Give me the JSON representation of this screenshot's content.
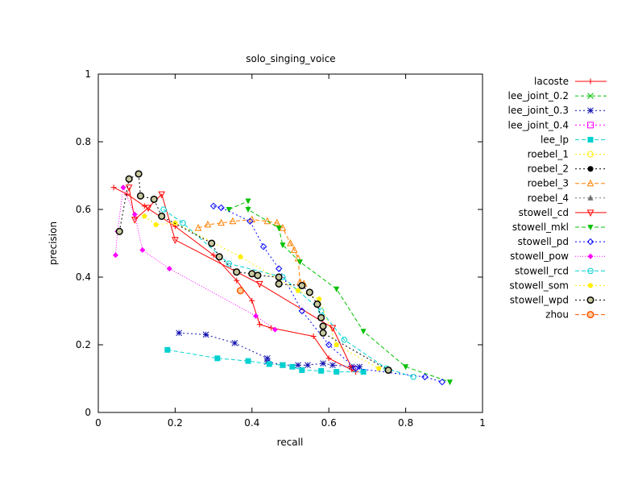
{
  "chart_data": {
    "type": "line",
    "title": "solo_singing_voice",
    "xlabel": "recall",
    "ylabel": "precision",
    "xlim": [
      0,
      1
    ],
    "ylim": [
      0,
      1
    ],
    "xticks": [
      "0",
      "0.2",
      "0.4",
      "0.6",
      "0.8",
      "1"
    ],
    "yticks": [
      "0",
      "0.2",
      "0.4",
      "0.6",
      "0.8",
      "1"
    ],
    "grid": false,
    "legend_position": "right",
    "series": [
      {
        "name": "lacoste",
        "color": "#ff0000",
        "marker": "plus",
        "dash": "",
        "points": [
          [
            0.04,
            0.665
          ],
          [
            0.075,
            0.645
          ],
          [
            0.12,
            0.61
          ],
          [
            0.2,
            0.55
          ],
          [
            0.3,
            0.465
          ],
          [
            0.36,
            0.39
          ],
          [
            0.4,
            0.33
          ],
          [
            0.42,
            0.26
          ],
          [
            0.45,
            0.25
          ],
          [
            0.56,
            0.225
          ],
          [
            0.6,
            0.16
          ],
          [
            0.67,
            0.12
          ]
        ]
      },
      {
        "name": "lee_joint_0.2",
        "color": "#00c000",
        "marker": "x",
        "dash": "4,3",
        "points": []
      },
      {
        "name": "lee_joint_0.3",
        "color": "#1010b0",
        "marker": "star",
        "dash": "2,3",
        "points": [
          [
            0.21,
            0.235
          ],
          [
            0.28,
            0.23
          ],
          [
            0.355,
            0.205
          ],
          [
            0.44,
            0.16
          ],
          [
            0.44,
            0.15
          ],
          [
            0.48,
            0.14
          ],
          [
            0.52,
            0.14
          ],
          [
            0.545,
            0.14
          ],
          [
            0.585,
            0.145
          ],
          [
            0.61,
            0.14
          ],
          [
            0.66,
            0.135
          ],
          [
            0.68,
            0.135
          ]
        ]
      },
      {
        "name": "lee_joint_0.4",
        "color": "#ff00ff",
        "marker": "box",
        "dash": "2,3",
        "points": []
      },
      {
        "name": "lee_lp",
        "color": "#00d0d0",
        "marker": "fbox",
        "dash": "5,3",
        "points": [
          [
            0.18,
            0.185
          ],
          [
            0.31,
            0.16
          ],
          [
            0.39,
            0.152
          ],
          [
            0.445,
            0.143
          ],
          [
            0.48,
            0.14
          ],
          [
            0.505,
            0.135
          ],
          [
            0.53,
            0.125
          ],
          [
            0.58,
            0.123
          ],
          [
            0.62,
            0.12
          ],
          [
            0.69,
            0.12
          ]
        ]
      },
      {
        "name": "roebel_1",
        "color": "#ffee00",
        "marker": "circle",
        "dash": "2,3",
        "points": []
      },
      {
        "name": "roebel_2",
        "color": "#000000",
        "marker": "fcircle",
        "dash": "2,3",
        "points": []
      },
      {
        "name": "roebel_3",
        "color": "#ff8000",
        "marker": "triangle",
        "dash": "5,3",
        "points": [
          [
            0.26,
            0.545
          ],
          [
            0.285,
            0.555
          ],
          [
            0.32,
            0.56
          ],
          [
            0.35,
            0.565
          ],
          [
            0.4,
            0.57
          ],
          [
            0.44,
            0.565
          ],
          [
            0.465,
            0.56
          ],
          [
            0.48,
            0.545
          ],
          [
            0.5,
            0.5
          ],
          [
            0.51,
            0.48
          ],
          [
            0.52,
            0.455
          ],
          [
            0.525,
            0.385
          ],
          [
            0.535,
            0.38
          ]
        ]
      },
      {
        "name": "roebel_4",
        "color": "#707070",
        "marker": "ftriangle",
        "dash": "2,3",
        "points": []
      },
      {
        "name": "stowell_cd",
        "color": "#ff0000",
        "marker": "itriangle",
        "dash": "",
        "points": [
          [
            0.08,
            0.665
          ],
          [
            0.095,
            0.57
          ],
          [
            0.13,
            0.605
          ],
          [
            0.165,
            0.645
          ],
          [
            0.2,
            0.51
          ],
          [
            0.42,
            0.38
          ],
          [
            0.61,
            0.25
          ],
          [
            0.66,
            0.13
          ]
        ]
      },
      {
        "name": "stowell_mkl",
        "color": "#00c000",
        "marker": "fitriangle",
        "dash": "5,3",
        "points": [
          [
            0.34,
            0.6
          ],
          [
            0.39,
            0.625
          ],
          [
            0.39,
            0.6
          ],
          [
            0.47,
            0.545
          ],
          [
            0.48,
            0.495
          ],
          [
            0.525,
            0.445
          ],
          [
            0.62,
            0.365
          ],
          [
            0.69,
            0.24
          ],
          [
            0.8,
            0.135
          ],
          [
            0.915,
            0.09
          ]
        ]
      },
      {
        "name": "stowell_pd",
        "color": "#0000ff",
        "marker": "diamond",
        "dash": "2,3",
        "points": [
          [
            0.3,
            0.61
          ],
          [
            0.32,
            0.605
          ],
          [
            0.395,
            0.565
          ],
          [
            0.43,
            0.49
          ],
          [
            0.47,
            0.425
          ],
          [
            0.53,
            0.3
          ],
          [
            0.6,
            0.2
          ],
          [
            0.67,
            0.13
          ],
          [
            0.85,
            0.105
          ],
          [
            0.895,
            0.09
          ]
        ]
      },
      {
        "name": "stowell_pow",
        "color": "#ff00ff",
        "marker": "fdiamond",
        "dash": "1,2",
        "points": [
          [
            0.045,
            0.465
          ],
          [
            0.05,
            0.535
          ],
          [
            0.065,
            0.665
          ],
          [
            0.095,
            0.585
          ],
          [
            0.115,
            0.48
          ],
          [
            0.185,
            0.425
          ],
          [
            0.41,
            0.285
          ],
          [
            0.46,
            0.245
          ]
        ]
      },
      {
        "name": "stowell_rcd",
        "color": "#00d0d0",
        "marker": "hexagon",
        "dash": "5,3",
        "points": [
          [
            0.17,
            0.6
          ],
          [
            0.22,
            0.56
          ],
          [
            0.34,
            0.44
          ],
          [
            0.48,
            0.4
          ],
          [
            0.58,
            0.3
          ],
          [
            0.64,
            0.215
          ],
          [
            0.75,
            0.13
          ],
          [
            0.82,
            0.105
          ]
        ]
      },
      {
        "name": "stowell_som",
        "color": "#ffee00",
        "marker": "fpentagon",
        "dash": "2,3",
        "points": [
          [
            0.12,
            0.58
          ],
          [
            0.15,
            0.555
          ],
          [
            0.2,
            0.56
          ],
          [
            0.37,
            0.46
          ],
          [
            0.52,
            0.36
          ],
          [
            0.575,
            0.335
          ],
          [
            0.62,
            0.2
          ],
          [
            0.73,
            0.13
          ]
        ]
      },
      {
        "name": "stowell_wpd",
        "color": "#000000",
        "marker": "ocircle",
        "dash": "2,3",
        "points": [
          [
            0.055,
            0.535
          ],
          [
            0.08,
            0.69
          ],
          [
            0.105,
            0.705
          ],
          [
            0.11,
            0.64
          ],
          [
            0.145,
            0.63
          ],
          [
            0.165,
            0.58
          ],
          [
            0.295,
            0.5
          ],
          [
            0.315,
            0.46
          ],
          [
            0.36,
            0.415
          ],
          [
            0.4,
            0.41
          ],
          [
            0.415,
            0.405
          ],
          [
            0.47,
            0.4
          ],
          [
            0.47,
            0.38
          ],
          [
            0.53,
            0.375
          ],
          [
            0.55,
            0.355
          ],
          [
            0.57,
            0.32
          ],
          [
            0.58,
            0.28
          ],
          [
            0.585,
            0.255
          ],
          [
            0.585,
            0.235
          ],
          [
            0.755,
            0.125
          ]
        ]
      },
      {
        "name": "zhou",
        "color": "#ff5500",
        "marker": "ocircle",
        "dash": "5,3",
        "points": [
          [
            0.37,
            0.36
          ]
        ]
      }
    ]
  }
}
